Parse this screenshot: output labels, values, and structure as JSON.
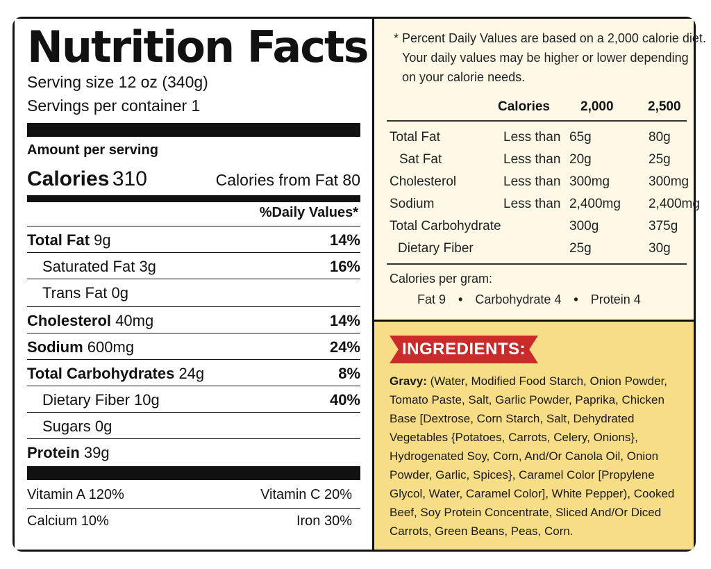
{
  "title": "Nutrition Facts",
  "serving_size": "Serving size 12 oz (340g)",
  "servings_per_container": "Servings per container 1",
  "amount_per_serving": "Amount per serving",
  "calories_label": "Calories",
  "calories_value": "310",
  "calories_from_fat": "Calories from Fat 80",
  "daily_values_header": "%Daily Values*",
  "nutrients": [
    {
      "name": "Total Fat",
      "amount": "9g",
      "pct": "14%"
    },
    {
      "name": "Saturated Fat",
      "amount": "3g",
      "pct": "16%"
    },
    {
      "name": "Trans Fat",
      "amount": "0g",
      "pct": ""
    },
    {
      "name": "Cholesterol",
      "amount": "40mg",
      "pct": "14%"
    },
    {
      "name": "Sodium",
      "amount": "600mg",
      "pct": "24%"
    },
    {
      "name": "Total Carbohydrates",
      "amount": "24g",
      "pct": "8%"
    },
    {
      "name": "Dietary Fiber",
      "amount": "10g",
      "pct": "40%"
    },
    {
      "name": "Sugars",
      "amount": "0g",
      "pct": ""
    },
    {
      "name": "Protein",
      "amount": "39g",
      "pct": ""
    }
  ],
  "vitamins": {
    "vitamin_a": "Vitamin A 120%",
    "vitamin_c": "Vitamin C 20%",
    "calcium": "Calcium 10%",
    "iron": "Iron 30%"
  },
  "footnote": {
    "line1": "* Percent Daily Values are based on a 2,000 calorie diet.",
    "line2": "Your daily values may be higher or lower depending",
    "line3": "on your calorie needs."
  },
  "dv_table": {
    "headers": {
      "calories": "Calories",
      "col1": "2,000",
      "col2": "2,500"
    },
    "rows": [
      {
        "name": "Total Fat",
        "qualifier": "Less than",
        "v1": "65g",
        "v2": "80g"
      },
      {
        "name": "Sat Fat",
        "qualifier": "Less than",
        "v1": "20g",
        "v2": "25g"
      },
      {
        "name": "Cholesterol",
        "qualifier": "Less than",
        "v1": "300mg",
        "v2": "300mg"
      },
      {
        "name": "Sodium",
        "qualifier": "Less than",
        "v1": "2,400mg",
        "v2": "2,400mg"
      },
      {
        "name": "Total Carbohydrate",
        "qualifier": "",
        "v1": "300g",
        "v2": "375g"
      },
      {
        "name": "Dietary Fiber",
        "qualifier": "",
        "v1": "25g",
        "v2": "30g"
      }
    ]
  },
  "calories_per_gram": {
    "label": "Calories per gram:",
    "fat": "Fat 9",
    "carbohydrate": "Carbohydrate 4",
    "protein": "Protein 4",
    "separator": "•"
  },
  "ingredients": {
    "heading": "INGREDIENTS:",
    "gravy_label": "Gravy:",
    "text": " (Water, Modified Food Starch, Onion Powder, Tomato Paste, Salt, Garlic Powder, Paprika, Chicken Base [Dextrose, Corn Starch, Salt, Dehydrated Vegetables {Potatoes, Carrots, Celery, Onions}, Hydrogenated Soy, Corn, And/Or Canola Oil, Onion Powder, Garlic, Spices}, Caramel Color [Propylene Glycol, Water, Caramel Color], White Pepper), Cooked Beef, Soy Protein Concentrate, Sliced And/Or Diced Carrots, Green Beans, Peas, Corn."
  },
  "colors": {
    "border": "#111111",
    "dv_panel_bg": "#fdf9e6",
    "ingredients_bg": "#f7dd86",
    "banner_red": "#c92a2a"
  }
}
